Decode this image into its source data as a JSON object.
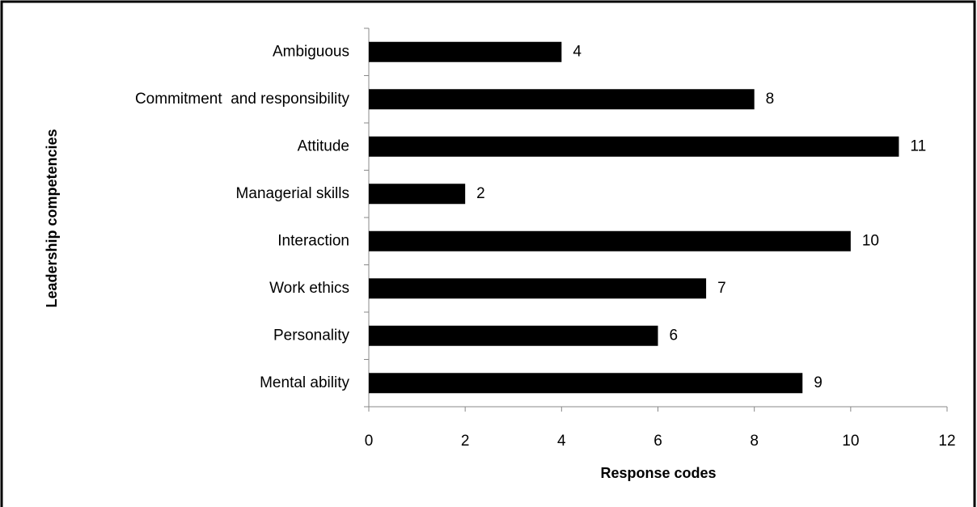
{
  "chart_data": {
    "type": "bar",
    "orientation": "horizontal",
    "xlabel": "Response codes",
    "ylabel": "Leadership competencies",
    "categories": [
      "Ambiguous",
      "Commitment  and responsibility",
      "Attitude",
      "Managerial skills",
      "Interaction",
      "Work ethics",
      "Personality",
      "Mental ability"
    ],
    "values": [
      4,
      8,
      11,
      2,
      10,
      7,
      6,
      9
    ],
    "color": "#000000",
    "xlim": [
      0,
      12
    ],
    "xticks": [
      0,
      2,
      4,
      6,
      8,
      10,
      12
    ],
    "grid": false
  }
}
